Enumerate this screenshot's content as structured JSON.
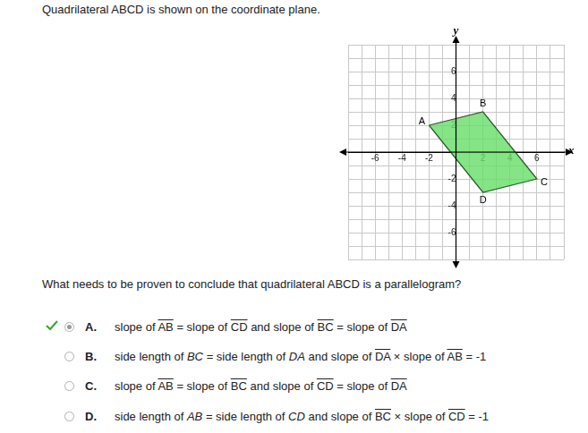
{
  "header": {
    "text": "Quadrilateral ABCD is shown on the coordinate plane."
  },
  "chart_data": {
    "type": "polygon",
    "x_label": "x",
    "y_label": "y",
    "xlim": [
      -8,
      8
    ],
    "ylim": [
      -8,
      8
    ],
    "xticks": [
      -6,
      -4,
      -2,
      2,
      4,
      6
    ],
    "yticks": [
      -6,
      -4,
      -2,
      2,
      4,
      6
    ],
    "grid": true,
    "color": "#66dd66",
    "points": [
      {
        "label": "A",
        "x": -2,
        "y": 2
      },
      {
        "label": "B",
        "x": 2,
        "y": 3
      },
      {
        "label": "C",
        "x": 6,
        "y": -2
      },
      {
        "label": "D",
        "x": 2,
        "y": -3
      }
    ]
  },
  "question": "What needs to be proven to conclude that quadrilateral ABCD is a parallelogram?",
  "options": [
    {
      "letter": "A.",
      "text": [
        "slope of ",
        {
          "overline": "AB"
        },
        " = slope of ",
        {
          "overline": "CD"
        },
        " and slope of ",
        {
          "overline": "BC"
        },
        " = slope of ",
        {
          "overline": "DA"
        }
      ]
    },
    {
      "letter": "B.",
      "text": [
        "side length of ",
        {
          "italic": "BC"
        },
        " = side length of ",
        {
          "italic": "DA"
        },
        " and slope of ",
        {
          "overline": "DA"
        },
        " × slope of ",
        {
          "overline": "AB"
        },
        " = -1"
      ]
    },
    {
      "letter": "C.",
      "text": [
        "slope of ",
        {
          "overline": "AB"
        },
        " = slope of ",
        {
          "overline": "BC"
        },
        " and slope of ",
        {
          "overline": "CD"
        },
        " = slope of ",
        {
          "overline": "DA"
        }
      ]
    },
    {
      "letter": "D.",
      "text": [
        "side length of ",
        {
          "italic": "AB"
        },
        " = side length of ",
        {
          "italic": "CD"
        },
        " and slope of ",
        {
          "overline": "BC"
        },
        " × slope of ",
        {
          "overline": "CD"
        },
        " = -1"
      ]
    }
  ],
  "selected": "A."
}
